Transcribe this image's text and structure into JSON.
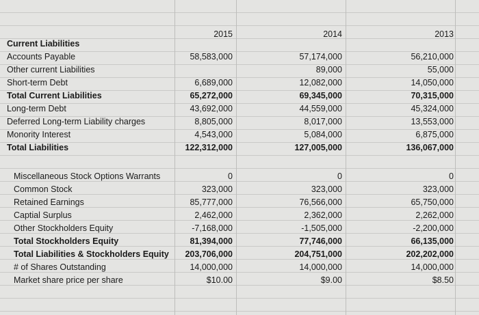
{
  "header": {
    "years": [
      "2015",
      "2014",
      "2013"
    ]
  },
  "sections": [
    {
      "rows": [
        {
          "label": "Current Liabilities",
          "bold": true,
          "values": [
            null,
            null,
            null
          ]
        },
        {
          "label": "Accounts Payable",
          "bold": false,
          "values": [
            "58,583,000",
            "57,174,000",
            "56,210,000"
          ]
        },
        {
          "label": "Other current Liabilities",
          "bold": false,
          "values": [
            null,
            "89,000",
            "55,000"
          ]
        },
        {
          "label": "Short-term Debt",
          "bold": false,
          "values": [
            "6,689,000",
            "12,082,000",
            "14,050,000"
          ]
        },
        {
          "label": "Total Current Liabilities",
          "bold": true,
          "values": [
            "65,272,000",
            "69,345,000",
            "70,315,000"
          ]
        },
        {
          "label": "Long-term Debt",
          "bold": false,
          "values": [
            "43,692,000",
            "44,559,000",
            "45,324,000"
          ]
        },
        {
          "label": "Deferred Long-term Liability charges",
          "bold": false,
          "values": [
            "8,805,000",
            "8,017,000",
            "13,553,000"
          ]
        },
        {
          "label": "Monority Interest",
          "bold": false,
          "values": [
            "4,543,000",
            "5,084,000",
            "6,875,000"
          ]
        },
        {
          "label": "Total Liabilities",
          "bold": true,
          "values": [
            "122,312,000",
            "127,005,000",
            "136,067,000"
          ]
        }
      ]
    },
    {
      "rows": [
        {
          "label": "Miscellaneous Stock Options Warrants",
          "bold": false,
          "values": [
            "0",
            "0",
            "0"
          ]
        },
        {
          "label": "Common Stock",
          "bold": false,
          "values": [
            "323,000",
            "323,000",
            "323,000"
          ]
        },
        {
          "label": "Retained Earnings",
          "bold": false,
          "values": [
            "85,777,000",
            "76,566,000",
            "65,750,000"
          ]
        },
        {
          "label": "Captial Surplus",
          "bold": false,
          "values": [
            "2,462,000",
            "2,362,000",
            "2,262,000"
          ]
        },
        {
          "label": "Other Stockholders Equity",
          "bold": false,
          "values": [
            "-7,168,000",
            "-1,505,000",
            "-2,200,000"
          ]
        },
        {
          "label": "Total Stockholders Equity",
          "bold": true,
          "values": [
            "81,394,000",
            "77,746,000",
            "66,135,000"
          ]
        },
        {
          "label": "Total Liabilities & Stockholders Equity",
          "bold": true,
          "values": [
            "203,706,000",
            "204,751,000",
            "202,202,000"
          ]
        },
        {
          "label": "# of Shares Outstanding",
          "bold": false,
          "values": [
            "14,000,000",
            "14,000,000",
            "14,000,000"
          ]
        },
        {
          "label": "Market share price per share",
          "bold": false,
          "values": [
            "$10.00",
            "$9.00",
            "$8.50"
          ]
        }
      ]
    }
  ]
}
